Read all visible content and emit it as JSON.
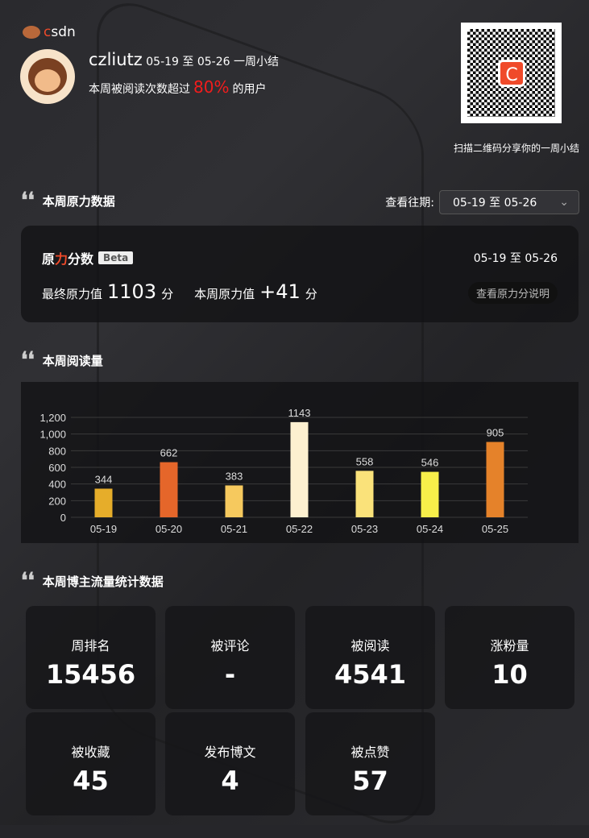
{
  "brand": "CSDN",
  "user": {
    "name": "czliutz",
    "range": "05-19 至 05-26",
    "suffix": "一周小结",
    "read_prefix": "本周被阅读次数超过",
    "percent": "80%",
    "read_suffix": "的用户"
  },
  "qr": {
    "caption": "扫描二维码分享你的一周小结",
    "center": "C"
  },
  "force": {
    "title": "本周原力数据",
    "period_label": "查看往期:",
    "period_value": "05-19 至 05-26",
    "card_title_a": "原",
    "card_title_b": "力",
    "card_title_c": "分数",
    "beta": "Beta",
    "range": "05-19 至 05-26",
    "final_label": "最终原力值",
    "final_value": "1103",
    "unit": "分",
    "week_label": "本周原力值",
    "week_value": "+41",
    "explain": "查看原力分说明"
  },
  "reads": {
    "title": "本周阅读量"
  },
  "chart_data": {
    "type": "bar",
    "categories": [
      "05-19",
      "05-20",
      "05-21",
      "05-22",
      "05-23",
      "05-24",
      "05-25"
    ],
    "values": [
      344,
      662,
      383,
      1143,
      558,
      546,
      905
    ],
    "colors": [
      "#e6ad2a",
      "#e5662a",
      "#f6c95e",
      "#fdf0d0",
      "#fae27a",
      "#f7ef4a",
      "#e5822a"
    ],
    "ylim": [
      0,
      1200
    ],
    "yticks": [
      "0",
      "200",
      "400",
      "600",
      "800",
      "1,000",
      "1,200"
    ],
    "grid": true
  },
  "stats": {
    "title": "本周博主流量统计数据",
    "items": [
      {
        "label": "周排名",
        "value": "15456"
      },
      {
        "label": "被评论",
        "value": "-"
      },
      {
        "label": "被阅读",
        "value": "4541"
      },
      {
        "label": "涨粉量",
        "value": "10"
      },
      {
        "label": "被收藏",
        "value": "45"
      },
      {
        "label": "发布博文",
        "value": "4"
      },
      {
        "label": "被点赞",
        "value": "57"
      }
    ]
  }
}
